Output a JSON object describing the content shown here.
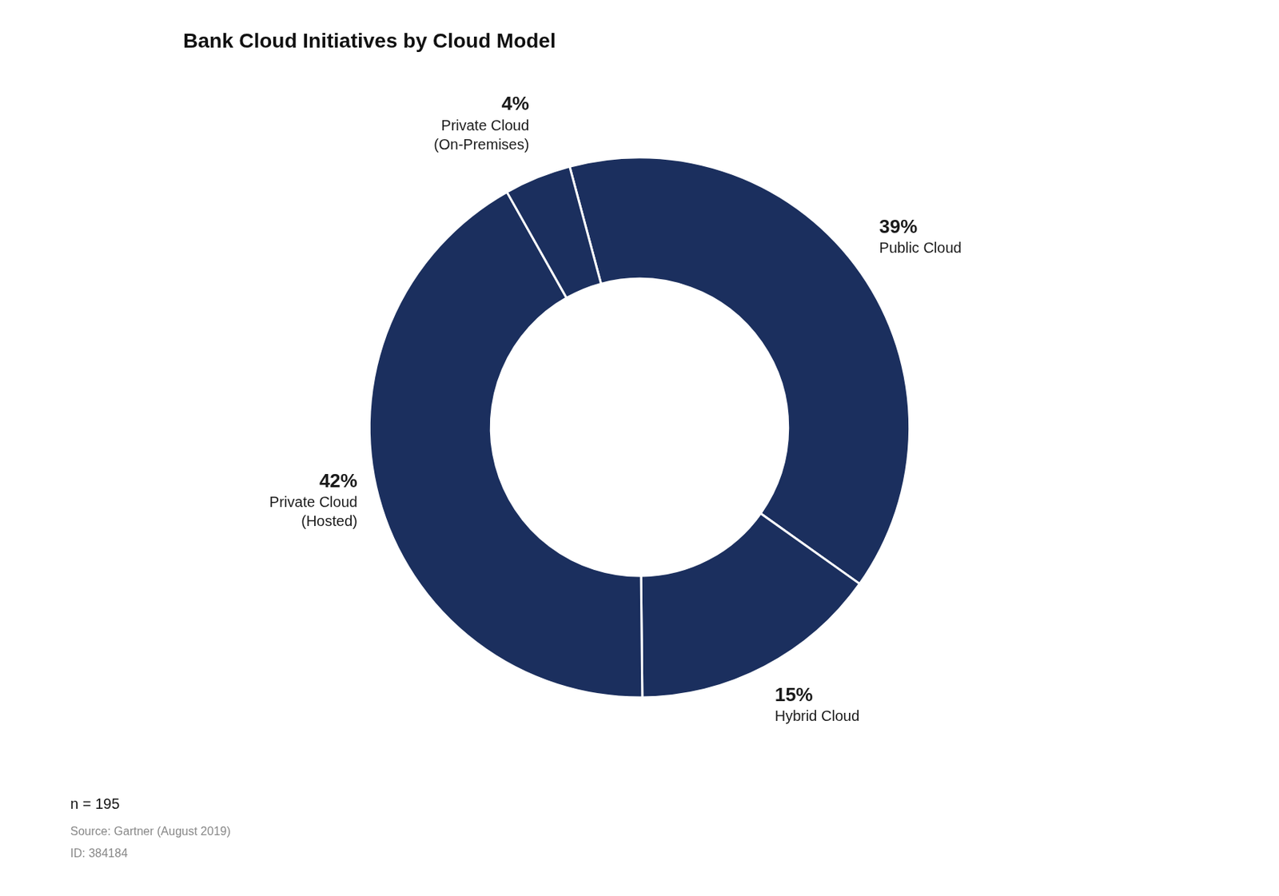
{
  "chart_data": {
    "type": "doughnut",
    "title": "Bank Cloud Initiatives by Cloud Model",
    "categories": [
      "Public Cloud",
      "Hybrid Cloud",
      "Private Cloud\n(Hosted)",
      "Private Cloud\n(On-Premises)"
    ],
    "values": [
      39,
      15,
      42,
      4
    ],
    "value_labels": [
      "39%",
      "15%",
      "42%",
      "4%"
    ],
    "data_labels": true,
    "color": "#1b2f5e",
    "annotations": [
      "n = 195",
      "Source: Gartner (August 2019)",
      "ID: 384184"
    ]
  }
}
